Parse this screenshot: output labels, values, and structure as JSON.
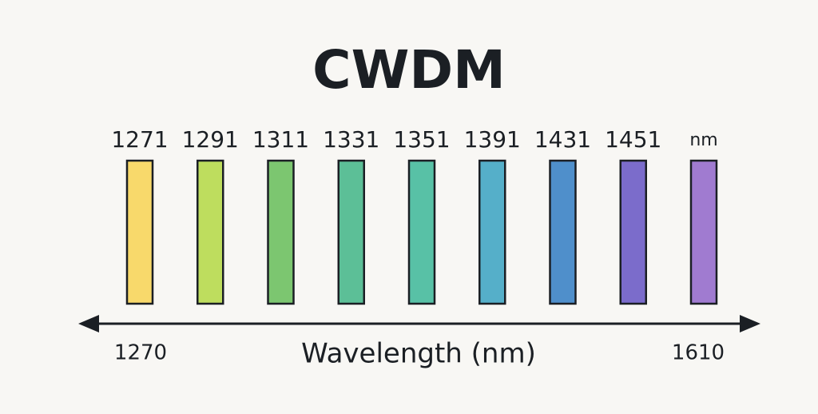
{
  "title": "CWDM",
  "channels": [
    {
      "label": "1271",
      "color": "#f8d96b"
    },
    {
      "label": "1291",
      "color": "#bedd5e"
    },
    {
      "label": "1311",
      "color": "#7cc670"
    },
    {
      "label": "1331",
      "color": "#5cbf97"
    },
    {
      "label": "1351",
      "color": "#58c1a6"
    },
    {
      "label": "1391",
      "color": "#55afc9"
    },
    {
      "label": "1431",
      "color": "#4f8fcb"
    },
    {
      "label": "1451",
      "color": "#7b6ccb"
    },
    {
      "label": "nm",
      "color": "#a07bd0"
    }
  ],
  "axis": {
    "label": "Wavelength (nm)",
    "start": "1270",
    "end": "1610"
  }
}
